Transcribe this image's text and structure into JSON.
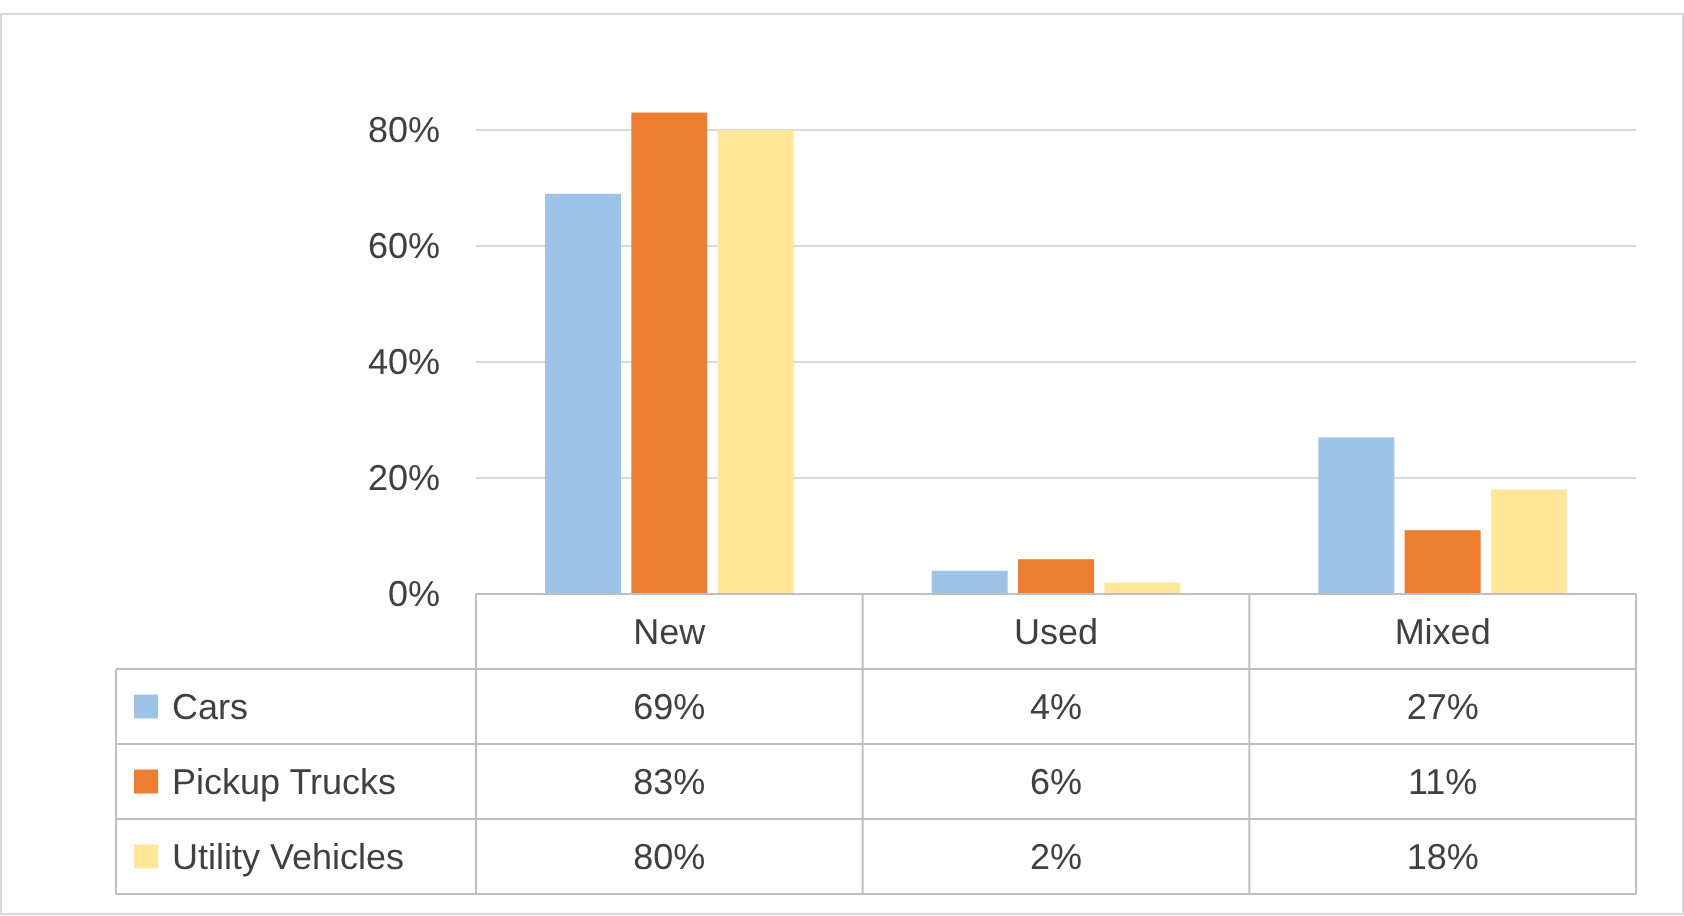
{
  "chart_data": {
    "type": "bar",
    "categories": [
      "New",
      "Used",
      "Mixed"
    ],
    "series": [
      {
        "name": "Cars",
        "color": "#9dc3e6",
        "values": [
          69,
          4,
          27
        ],
        "value_labels": [
          "69%",
          "4%",
          "27%"
        ]
      },
      {
        "name": "Pickup Trucks",
        "color": "#ed7d31",
        "values": [
          83,
          6,
          11
        ],
        "value_labels": [
          "83%",
          "6%",
          "11%"
        ]
      },
      {
        "name": "Utility Vehicles",
        "color": "#ffe699",
        "values": [
          80,
          2,
          18
        ],
        "value_labels": [
          "80%",
          "2%",
          "18%"
        ]
      }
    ],
    "ylim": [
      0,
      100
    ],
    "yticks": [
      {
        "value": 0,
        "label": "0%"
      },
      {
        "value": 20,
        "label": "20%"
      },
      {
        "value": 40,
        "label": "40%"
      },
      {
        "value": 60,
        "label": "60%"
      },
      {
        "value": 80,
        "label": "80%"
      }
    ],
    "grid": "y",
    "legend": "bottom"
  }
}
